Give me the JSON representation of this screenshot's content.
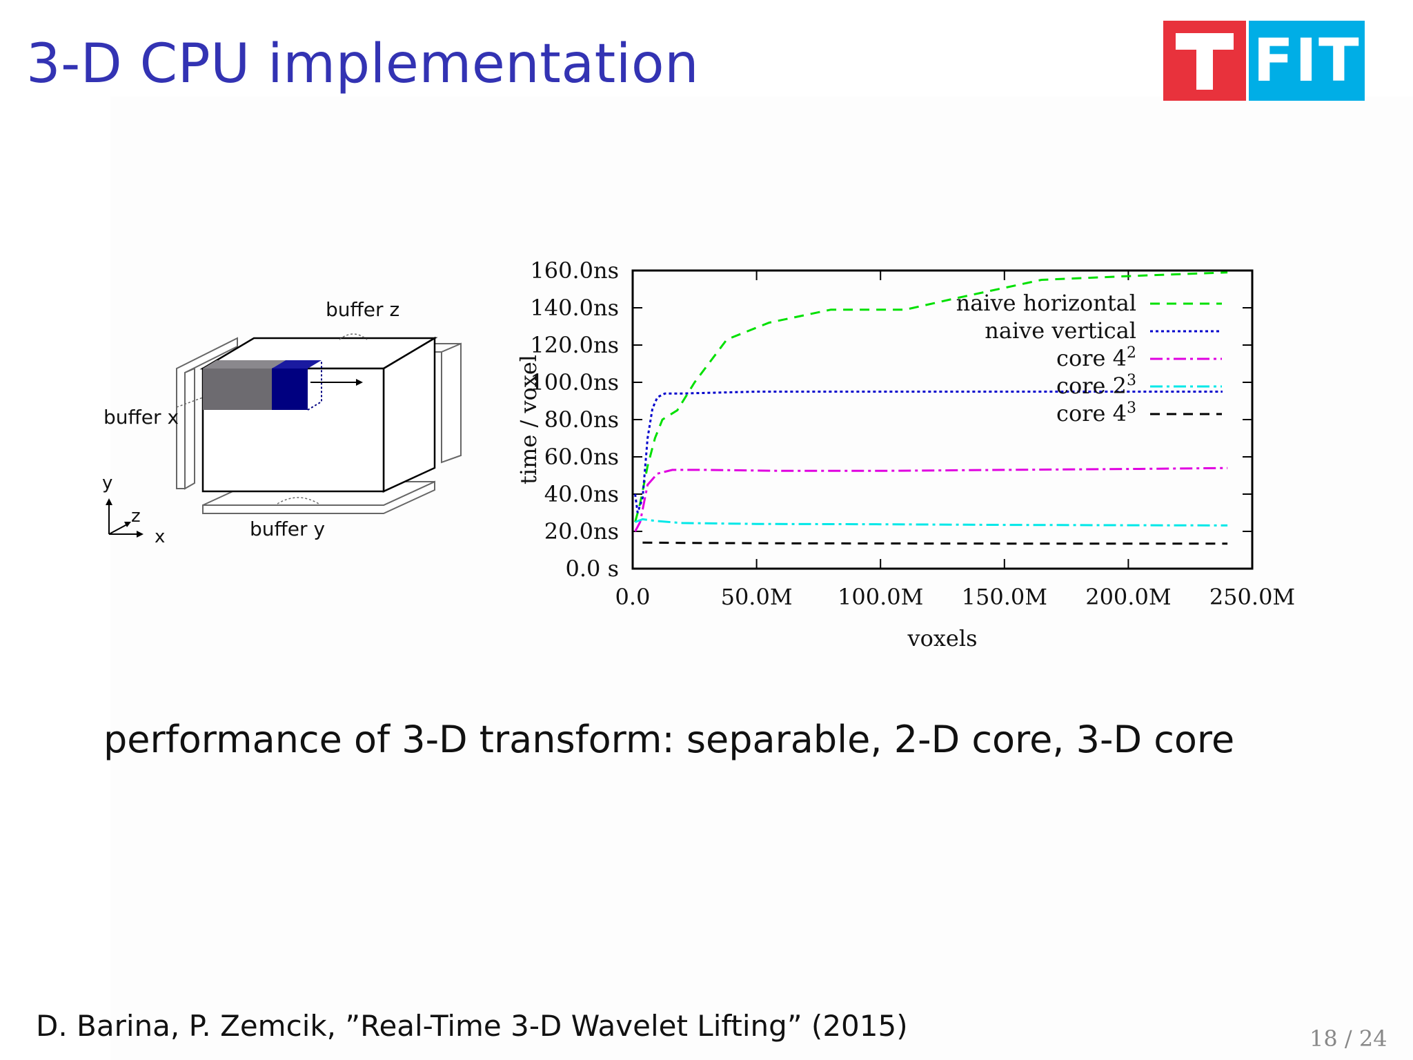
{
  "slide": {
    "title": "3-D CPU implementation",
    "logo_text": "FIT",
    "caption": "performance of 3-D transform: separable, 2-D core, 3-D core",
    "citation": "D. Barina, P. Zemcik, ”Real-Time 3-D Wavelet Lifting” (2015)",
    "page": "18 / 24"
  },
  "diagram": {
    "labels": {
      "buffer_x": "buffer x",
      "buffer_y": "buffer y",
      "buffer_z": "buffer z",
      "axis_y": "y",
      "axis_z": "z",
      "axis_x": "x"
    },
    "colors": {
      "processed": "#6d6b70",
      "core": "#000080"
    }
  },
  "chart_data": {
    "type": "line",
    "xlabel": "voxels",
    "ylabel": "time / voxel",
    "xlim": [
      0,
      250000000
    ],
    "ylim": [
      0,
      160
    ],
    "x_ticks": [
      {
        "value": 0,
        "label": "0.0"
      },
      {
        "value": 50000000,
        "label": "50.0M"
      },
      {
        "value": 100000000,
        "label": "100.0M"
      },
      {
        "value": 150000000,
        "label": "150.0M"
      },
      {
        "value": 200000000,
        "label": "200.0M"
      },
      {
        "value": 250000000,
        "label": "250.0M"
      }
    ],
    "y_ticks": [
      {
        "value": 0,
        "label": "0.0 s"
      },
      {
        "value": 20,
        "label": "20.0ns"
      },
      {
        "value": 40,
        "label": "40.0ns"
      },
      {
        "value": 60,
        "label": "60.0ns"
      },
      {
        "value": 80,
        "label": "80.0ns"
      },
      {
        "value": 100,
        "label": "100.0ns"
      },
      {
        "value": 120,
        "label": "120.0ns"
      },
      {
        "value": 140,
        "label": "140.0ns"
      },
      {
        "value": 160,
        "label": "160.0ns"
      }
    ],
    "legend_position": "top-right",
    "grid": false,
    "series": [
      {
        "name": "naive horizontal",
        "base": "naive horizontal",
        "sup": "",
        "color": "#00e000",
        "dash": "14,10",
        "x": [
          1000000,
          3000000,
          6000000,
          9000000,
          12000000,
          18000000,
          25000000,
          38000000,
          55000000,
          80000000,
          110000000,
          130000000,
          165000000,
          200000000,
          240000000
        ],
        "y": [
          25,
          35,
          55,
          70,
          80,
          85,
          100,
          123,
          132,
          139,
          139,
          145,
          155,
          157,
          159
        ]
      },
      {
        "name": "naive vertical",
        "base": "naive vertical",
        "sup": "",
        "color": "#0000cc",
        "dash": "4,4",
        "x": [
          1000000,
          2000000,
          4000000,
          6000000,
          8000000,
          10000000,
          13000000,
          20000000,
          50000000,
          100000000,
          150000000,
          200000000,
          238000000
        ],
        "y": [
          40,
          30,
          38,
          70,
          86,
          92,
          94,
          94,
          95,
          95,
          95,
          95,
          95
        ]
      },
      {
        "name": "core 4^2",
        "base": "core 4",
        "sup": "2",
        "color": "#e000e0",
        "dash": "18,6,4,6",
        "x": [
          1000000,
          3000000,
          6000000,
          10000000,
          16000000,
          30000000,
          60000000,
          100000000,
          150000000,
          200000000,
          240000000
        ],
        "y": [
          20,
          25,
          45,
          51,
          53,
          53,
          52.5,
          52.5,
          53,
          53.5,
          54
        ]
      },
      {
        "name": "core 2^3",
        "base": "core 2",
        "sup": "3",
        "color": "#00e8e8",
        "dash": "18,6,4,6",
        "x": [
          1000000,
          4000000,
          10000000,
          20000000,
          50000000,
          100000000,
          150000000,
          200000000,
          240000000
        ],
        "y": [
          25,
          26.5,
          25.5,
          24.5,
          24,
          23.8,
          23.5,
          23.3,
          23.2
        ]
      },
      {
        "name": "core 4^3",
        "base": "core 4",
        "sup": "3",
        "color": "#000000",
        "dash": "14,10",
        "x": [
          4000000,
          20000000,
          60000000,
          120000000,
          180000000,
          240000000
        ],
        "y": [
          14,
          13.8,
          13.6,
          13.5,
          13.4,
          13.4
        ]
      }
    ]
  }
}
